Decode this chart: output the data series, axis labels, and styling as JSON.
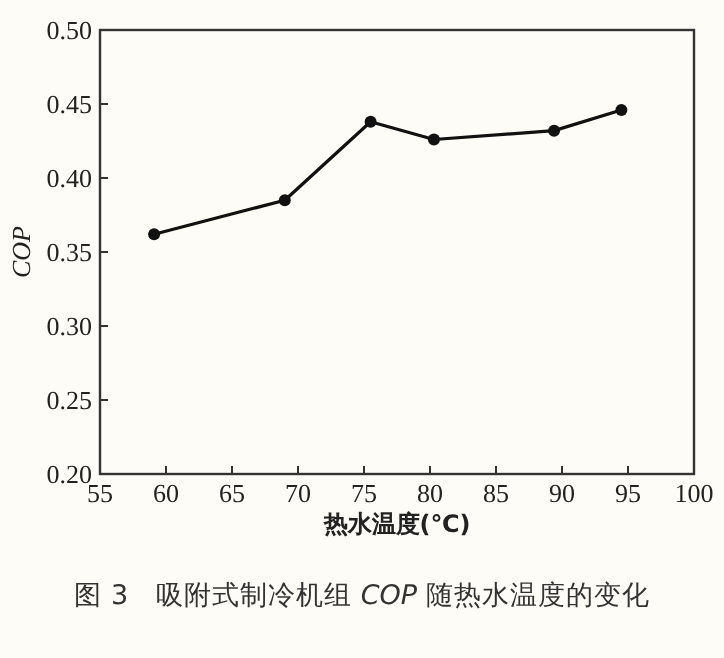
{
  "chart_data": {
    "type": "line",
    "xlabel": "热水温度(℃)",
    "ylabel": "COP",
    "x": [
      59.1,
      69.0,
      75.5,
      80.3,
      89.4,
      94.5
    ],
    "series": [
      {
        "color": "#111111",
        "values": [
          0.362,
          0.385,
          0.438,
          0.426,
          0.432,
          0.446
        ]
      }
    ],
    "xlim": [
      55,
      100
    ],
    "xticks": [
      55,
      60,
      65,
      70,
      75,
      80,
      85,
      90,
      95,
      100
    ],
    "ylim": [
      0.2,
      0.5
    ],
    "yticks": [
      {
        "value": 0.2,
        "label": "0.20"
      },
      {
        "value": 0.25,
        "label": "0.25"
      },
      {
        "value": 0.3,
        "label": "0.30"
      },
      {
        "value": 0.35,
        "label": "0.35"
      },
      {
        "value": 0.4,
        "label": "0.40"
      },
      {
        "value": 0.45,
        "label": "0.45"
      },
      {
        "value": 0.5,
        "label": "0.50"
      }
    ],
    "marker": "circle",
    "line_style": "solid",
    "annotations": [
      "图 3　吸附式制冷机组 *COP* 随热水温度的变化"
    ]
  }
}
